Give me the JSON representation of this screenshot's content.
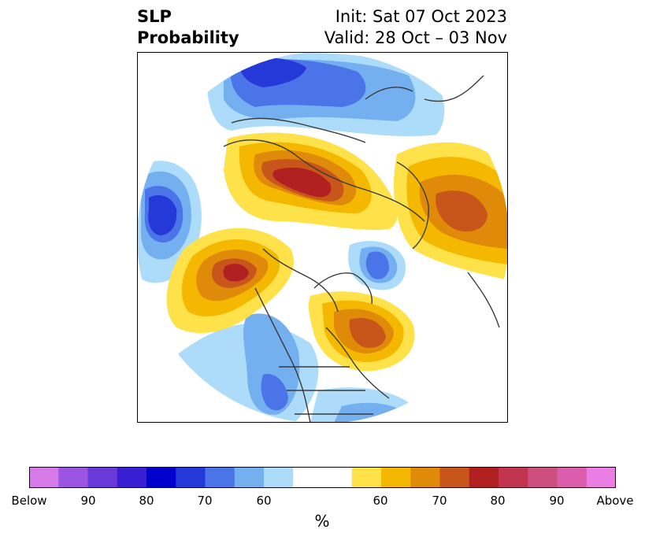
{
  "header": {
    "title_line1": "SLP",
    "title_line2": "Probability",
    "init": "Init: Sat 07 Oct 2023",
    "valid": "Valid: 28 Oct – 03 Nov"
  },
  "colorbar": {
    "unit": "%",
    "tick_labels": [
      "Below",
      "90",
      "80",
      "70",
      "60",
      "60",
      "70",
      "80",
      "90",
      "Above"
    ],
    "colors": [
      "#d67ae8",
      "#9b55e0",
      "#6a3ad8",
      "#3a1fd2",
      "#0000cc",
      "#2538d8",
      "#4b74e8",
      "#74b0f0",
      "#acdcfa",
      "#ffffff",
      "#ffe14a",
      "#f4b800",
      "#e08a0a",
      "#c8561a",
      "#b02020",
      "#c2354f",
      "#cd4f80",
      "#da5eab",
      "#ea7ee2"
    ]
  },
  "map": {
    "projection": "north-polar-stereographic",
    "field": "sea level pressure tercile probability",
    "anomalies": [
      {
        "region": "siberia-arctic",
        "category": "below"
      },
      {
        "region": "north-pacific-west",
        "category": "below"
      },
      {
        "region": "greenland-labrador",
        "category": "below"
      },
      {
        "region": "western-us",
        "category": "below"
      },
      {
        "region": "central-asia",
        "category": "above"
      },
      {
        "region": "europe",
        "category": "above"
      },
      {
        "region": "gulf-of-alaska",
        "category": "above"
      },
      {
        "region": "eastern-canada",
        "category": "above"
      }
    ]
  }
}
